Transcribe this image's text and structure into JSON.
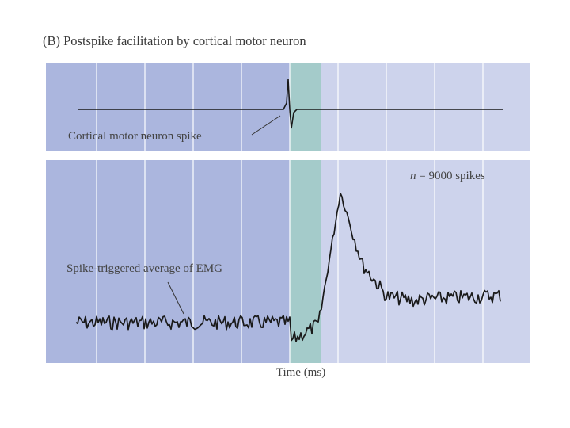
{
  "figure": {
    "title": "(B) Postspike facilitation by cortical motor neuron",
    "xlabel": "Time (ms)"
  },
  "top_panel": {
    "annotation": "Cortical motor neuron spike"
  },
  "bottom_panel": {
    "annotation": "Spike-triggered average of EMG",
    "n_var": "n",
    "n_text": " = 9000 spikes"
  },
  "colors": {
    "pre_spike_region": "#abb6de",
    "spike_window": "#a4cbca",
    "post_spike_region": "#cdd3ec",
    "gridline": "#ffffff",
    "trace": "#1a1a1a"
  }
}
